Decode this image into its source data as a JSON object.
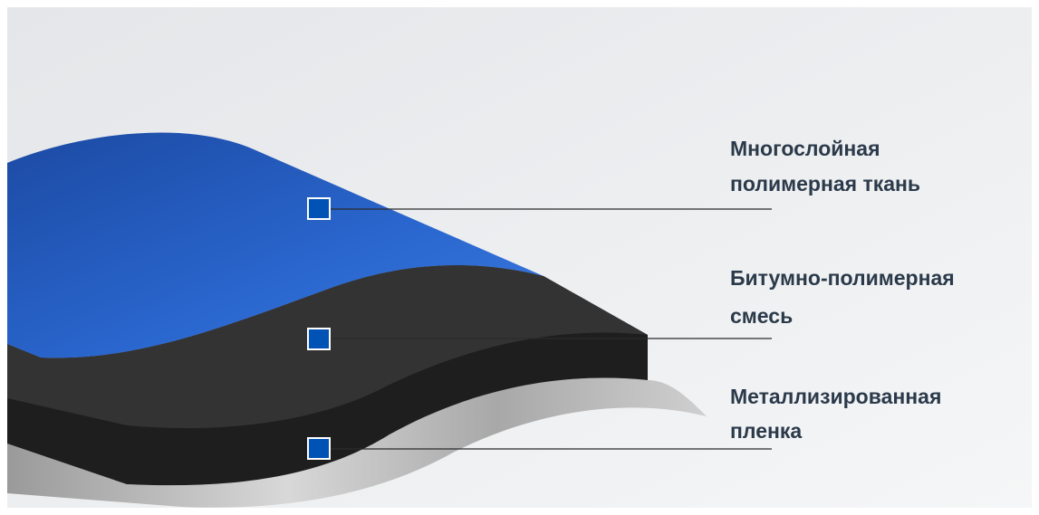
{
  "layers": [
    {
      "label": [
        "Многослойная",
        "полимерная ткань"
      ]
    },
    {
      "label": [
        "Битумно-полимерная",
        "смесь"
      ]
    },
    {
      "label": [
        "Металлизированная",
        "пленка"
      ]
    }
  ]
}
